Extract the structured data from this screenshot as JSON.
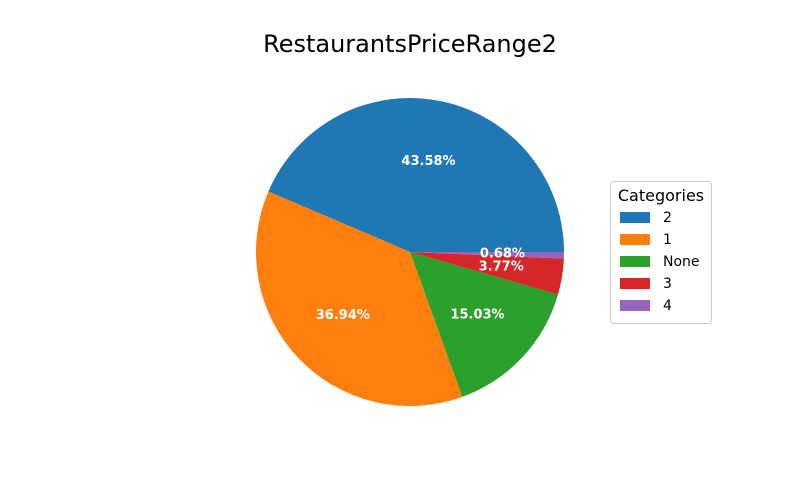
{
  "chart_data": {
    "type": "pie",
    "title": "RestaurantsPriceRange2",
    "categories": [
      "2",
      "1",
      "None",
      "3",
      "4"
    ],
    "values": [
      43.58,
      36.94,
      15.03,
      3.77,
      0.68
    ],
    "labels": [
      "43.58%",
      "36.94%",
      "15.03%",
      "3.77%",
      "0.68%"
    ],
    "colors": [
      "#1f77b4",
      "#ff7f0e",
      "#2ca02c",
      "#d62728",
      "#9467bd"
    ],
    "start_angle_deg": 0,
    "direction": "counterclockwise",
    "legend": {
      "title": "Categories",
      "placement": "center-right"
    }
  }
}
